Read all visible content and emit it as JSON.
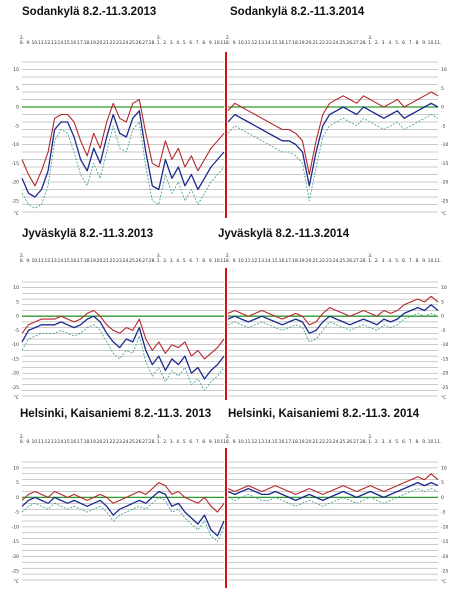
{
  "colors": {
    "max": "#b3272d",
    "mean": "#1c2a8c",
    "min": "#3a9c8c",
    "zero": "#2f9a2f",
    "divider": "#d11414",
    "grid": "#8a8a8a"
  },
  "x_ticks": [
    "8.",
    "9.",
    "10.",
    "11.",
    "12.",
    "13.",
    "14.",
    "15.",
    "16.",
    "17.",
    "18.",
    "19.",
    "20.",
    "21.",
    "22.",
    "23.",
    "24.",
    "25.",
    "26.",
    "27.",
    "28.",
    "1.",
    "2.",
    "3.",
    "4.",
    "5.",
    "6.",
    "7.",
    "8.",
    "9.",
    "10.",
    "11."
  ],
  "month_markers": [
    "2.",
    "3."
  ],
  "y_unit": "°C",
  "y_ticks": [
    "10",
    "5",
    "0",
    "-5",
    "-10",
    "-15",
    "-20",
    "-25"
  ],
  "chart_data": [
    {
      "type": "line",
      "title": "Sodankylä 8.2.-11.3.2013",
      "x": [
        "8.2.",
        "9.2.",
        "10.2.",
        "11.2.",
        "12.2.",
        "13.2.",
        "14.2.",
        "15.2.",
        "16.2.",
        "17.2.",
        "18.2.",
        "19.2.",
        "20.2.",
        "21.2.",
        "22.2.",
        "23.2.",
        "24.2.",
        "25.2.",
        "26.2.",
        "27.2.",
        "28.2.",
        "1.3.",
        "2.3.",
        "3.3.",
        "4.3.",
        "5.3.",
        "6.3.",
        "7.3.",
        "8.3.",
        "9.3.",
        "10.3.",
        "11.3."
      ],
      "series": [
        {
          "values": [
            -14,
            -18,
            -21,
            -17,
            -12,
            -3,
            -2,
            -2,
            -4,
            -9,
            -13,
            -7,
            -11,
            -4,
            1,
            -3,
            -4,
            1,
            2,
            -7,
            -15,
            -16,
            -9,
            -14,
            -11,
            -16,
            -13,
            -17,
            -14,
            -11,
            -9,
            -7
          ]
        },
        {
          "values": [
            -19,
            -23,
            -24,
            -22,
            -17,
            -6,
            -4,
            -4,
            -8,
            -14,
            -17,
            -11,
            -15,
            -8,
            -2,
            -7,
            -8,
            -3,
            -1,
            -12,
            -21,
            -22,
            -14,
            -19,
            -16,
            -21,
            -18,
            -22,
            -19,
            -16,
            -14,
            -12
          ]
        },
        {
          "values": [
            -23,
            -26,
            -27,
            -26,
            -21,
            -9,
            -6,
            -7,
            -12,
            -18,
            -21,
            -15,
            -19,
            -12,
            -5,
            -11,
            -12,
            -6,
            -4,
            -16,
            -25,
            -26,
            -18,
            -23,
            -20,
            -25,
            -22,
            -26,
            -23,
            -20,
            -18,
            -16
          ]
        }
      ],
      "ylim": [
        -28,
        12
      ]
    },
    {
      "type": "line",
      "title": "Sodankylä 8.2.-11.3.2014",
      "x": [
        "8.2.",
        "9.2.",
        "10.2.",
        "11.2.",
        "12.2.",
        "13.2.",
        "14.2.",
        "15.2.",
        "16.2.",
        "17.2.",
        "18.2.",
        "19.2.",
        "20.2.",
        "21.2.",
        "22.2.",
        "23.2.",
        "24.2.",
        "25.2.",
        "26.2.",
        "27.2.",
        "28.2.",
        "1.3.",
        "2.3.",
        "3.3.",
        "4.3.",
        "5.3.",
        "6.3.",
        "7.3.",
        "8.3.",
        "9.3.",
        "10.3.",
        "11.3."
      ],
      "series": [
        {
          "values": [
            -1,
            1,
            0,
            -1,
            -2,
            -3,
            -4,
            -5,
            -6,
            -6,
            -7,
            -9,
            -18,
            -9,
            -2,
            1,
            2,
            3,
            2,
            1,
            3,
            2,
            1,
            0,
            1,
            2,
            0,
            1,
            2,
            3,
            4,
            3
          ]
        },
        {
          "values": [
            -4,
            -2,
            -3,
            -4,
            -5,
            -6,
            -7,
            -8,
            -9,
            -9,
            -10,
            -12,
            -21,
            -12,
            -5,
            -2,
            -1,
            0,
            -1,
            -2,
            0,
            -1,
            -2,
            -3,
            -2,
            -1,
            -3,
            -2,
            -1,
            0,
            1,
            0
          ]
        },
        {
          "values": [
            -7,
            -5,
            -6,
            -7,
            -8,
            -9,
            -10,
            -11,
            -12,
            -12,
            -13,
            -15,
            -25,
            -16,
            -8,
            -5,
            -4,
            -3,
            -4,
            -5,
            -3,
            -4,
            -5,
            -6,
            -5,
            -4,
            -6,
            -5,
            -4,
            -3,
            -2,
            -3
          ]
        }
      ],
      "ylim": [
        -28,
        12
      ]
    },
    {
      "type": "line",
      "title": "Jyväskylä 8.2.-11.3.2013",
      "x": [
        "8.2.",
        "9.2.",
        "10.2.",
        "11.2.",
        "12.2.",
        "13.2.",
        "14.2.",
        "15.2.",
        "16.2.",
        "17.2.",
        "18.2.",
        "19.2.",
        "20.2.",
        "21.2.",
        "22.2.",
        "23.2.",
        "24.2.",
        "25.2.",
        "26.2.",
        "27.2.",
        "28.2.",
        "1.3.",
        "2.3.",
        "3.3.",
        "4.3.",
        "5.3.",
        "6.3.",
        "7.3.",
        "8.3.",
        "9.3.",
        "10.3.",
        "11.3."
      ],
      "series": [
        {
          "values": [
            -6,
            -3,
            -2,
            -1,
            -1,
            -1,
            0,
            -1,
            -2,
            -1,
            1,
            2,
            0,
            -3,
            -5,
            -6,
            -4,
            -5,
            -1,
            -8,
            -12,
            -9,
            -13,
            -10,
            -11,
            -9,
            -14,
            -12,
            -15,
            -13,
            -11,
            -8
          ]
        },
        {
          "values": [
            -9,
            -5,
            -4,
            -3,
            -3,
            -3,
            -2,
            -3,
            -4,
            -3,
            -1,
            0,
            -2,
            -6,
            -9,
            -11,
            -8,
            -9,
            -4,
            -12,
            -17,
            -14,
            -19,
            -15,
            -17,
            -14,
            -20,
            -18,
            -22,
            -19,
            -17,
            -14
          ]
        },
        {
          "values": [
            -12,
            -8,
            -7,
            -6,
            -6,
            -6,
            -5,
            -6,
            -7,
            -6,
            -4,
            -3,
            -5,
            -9,
            -13,
            -15,
            -12,
            -13,
            -7,
            -16,
            -21,
            -18,
            -23,
            -19,
            -21,
            -18,
            -24,
            -22,
            -26,
            -23,
            -21,
            -18
          ]
        }
      ],
      "ylim": [
        -28,
        12
      ]
    },
    {
      "type": "line",
      "title": "Jyväskylä 8.2.-11.3.2014",
      "x": [
        "8.2.",
        "9.2.",
        "10.2.",
        "11.2.",
        "12.2.",
        "13.2.",
        "14.2.",
        "15.2.",
        "16.2.",
        "17.2.",
        "18.2.",
        "19.2.",
        "20.2.",
        "21.2.",
        "22.2.",
        "23.2.",
        "24.2.",
        "25.2.",
        "26.2.",
        "27.2.",
        "28.2.",
        "1.3.",
        "2.3.",
        "3.3.",
        "4.3.",
        "5.3.",
        "6.3.",
        "7.3.",
        "8.3.",
        "9.3.",
        "10.3.",
        "11.3."
      ],
      "series": [
        {
          "values": [
            1,
            2,
            1,
            0,
            1,
            2,
            1,
            0,
            -1,
            0,
            1,
            0,
            -3,
            -2,
            1,
            3,
            2,
            1,
            0,
            1,
            2,
            1,
            0,
            2,
            1,
            2,
            4,
            5,
            6,
            5,
            7,
            5
          ]
        },
        {
          "values": [
            -1,
            0,
            -1,
            -2,
            -1,
            0,
            -1,
            -2,
            -3,
            -2,
            -1,
            -2,
            -6,
            -5,
            -2,
            0,
            -1,
            -2,
            -3,
            -2,
            -1,
            -2,
            -3,
            -1,
            -2,
            -1,
            1,
            2,
            3,
            2,
            4,
            2
          ]
        },
        {
          "values": [
            -3,
            -2,
            -3,
            -4,
            -3,
            -2,
            -3,
            -4,
            -5,
            -4,
            -3,
            -4,
            -9,
            -8,
            -5,
            -2,
            -3,
            -4,
            -5,
            -4,
            -3,
            -4,
            -5,
            -3,
            -4,
            -3,
            -1,
            0,
            1,
            0,
            1,
            0
          ]
        }
      ],
      "ylim": [
        -28,
        12
      ]
    },
    {
      "type": "line",
      "title": "Helsinki, Kaisaniemi 8.2.-11.3. 2013",
      "x": [
        "8.2.",
        "9.2.",
        "10.2.",
        "11.2.",
        "12.2.",
        "13.2.",
        "14.2.",
        "15.2.",
        "16.2.",
        "17.2.",
        "18.2.",
        "19.2.",
        "20.2.",
        "21.2.",
        "22.2.",
        "23.2.",
        "24.2.",
        "25.2.",
        "26.2.",
        "27.2.",
        "28.2.",
        "1.3.",
        "2.3.",
        "3.3.",
        "4.3.",
        "5.3.",
        "6.3.",
        "7.3.",
        "8.3.",
        "9.3.",
        "10.3.",
        "11.3."
      ],
      "series": [
        {
          "values": [
            -1,
            1,
            2,
            1,
            0,
            2,
            1,
            0,
            1,
            0,
            -1,
            0,
            1,
            0,
            -2,
            -1,
            0,
            1,
            2,
            1,
            3,
            5,
            4,
            1,
            2,
            0,
            -1,
            -2,
            0,
            -3,
            -5,
            -2
          ]
        },
        {
          "values": [
            -3,
            -1,
            0,
            -1,
            -2,
            0,
            -1,
            -2,
            -1,
            -2,
            -3,
            -2,
            -1,
            -3,
            -6,
            -4,
            -3,
            -2,
            -1,
            -2,
            0,
            2,
            1,
            -3,
            -2,
            -5,
            -7,
            -9,
            -6,
            -11,
            -13,
            -8
          ]
        },
        {
          "values": [
            -5,
            -3,
            -2,
            -3,
            -4,
            -2,
            -3,
            -4,
            -3,
            -4,
            -5,
            -4,
            -3,
            -5,
            -8,
            -6,
            -5,
            -4,
            -3,
            -4,
            -2,
            0,
            -1,
            -5,
            -4,
            -7,
            -9,
            -11,
            -8,
            -13,
            -15,
            -10
          ]
        }
      ],
      "ylim": [
        -28,
        12
      ]
    },
    {
      "type": "line",
      "title": "Helsinki, Kaisaniemi 8.2.-11.3. 2014",
      "x": [
        "8.2.",
        "9.2.",
        "10.2.",
        "11.2.",
        "12.2.",
        "13.2.",
        "14.2.",
        "15.2.",
        "16.2.",
        "17.2.",
        "18.2.",
        "19.2.",
        "20.2.",
        "21.2.",
        "22.2.",
        "23.2.",
        "24.2.",
        "25.2.",
        "26.2.",
        "27.2.",
        "28.2.",
        "1.3.",
        "2.3.",
        "3.3.",
        "4.3.",
        "5.3.",
        "6.3.",
        "7.3.",
        "8.3.",
        "9.3.",
        "10.3.",
        "11.3."
      ],
      "series": [
        {
          "values": [
            3,
            2,
            3,
            4,
            3,
            2,
            3,
            4,
            3,
            2,
            1,
            2,
            3,
            2,
            1,
            2,
            3,
            4,
            3,
            2,
            3,
            4,
            3,
            2,
            3,
            4,
            5,
            6,
            7,
            6,
            8,
            6
          ]
        },
        {
          "values": [
            2,
            1,
            2,
            3,
            2,
            1,
            1,
            2,
            1,
            0,
            -1,
            0,
            1,
            0,
            -1,
            0,
            1,
            2,
            1,
            0,
            1,
            2,
            1,
            0,
            1,
            2,
            3,
            4,
            5,
            4,
            5,
            4
          ]
        },
        {
          "values": [
            0,
            -1,
            0,
            1,
            0,
            -1,
            -1,
            0,
            -1,
            -2,
            -3,
            -2,
            -1,
            -2,
            -3,
            -2,
            -1,
            0,
            -1,
            -2,
            -1,
            0,
            -1,
            -2,
            -1,
            0,
            1,
            2,
            3,
            2,
            3,
            2
          ]
        }
      ],
      "ylim": [
        -28,
        12
      ]
    }
  ]
}
